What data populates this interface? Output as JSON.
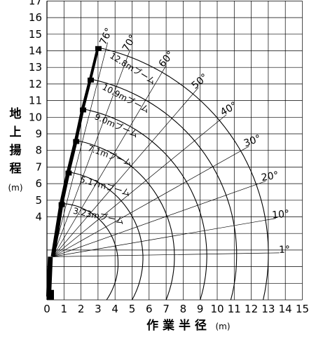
{
  "chart_data": {
    "type": "line",
    "xlabel": "作 業 半 径",
    "xunit": "(m)",
    "ylabel_chars": [
      "地",
      "上",
      "揚",
      "程"
    ],
    "yunit": "(m)",
    "xlim": [
      0,
      15
    ],
    "ylim": [
      -1,
      17
    ],
    "xticks": [
      "0",
      "1",
      "2",
      "3",
      "4",
      "5",
      "6",
      "7",
      "8",
      "9",
      "10",
      "11",
      "12",
      "13",
      "14",
      "15"
    ],
    "yticks": [
      "4",
      "5",
      "6",
      "7",
      "8",
      "9",
      "10",
      "11",
      "12",
      "13",
      "14",
      "15",
      "16",
      "17"
    ],
    "grid": true,
    "pivot": [
      0.35,
      1.6
    ],
    "booms": [
      {
        "label": "3.23mブーム",
        "length": 3.23,
        "tip": [
          0.85,
          4.8
        ]
      },
      {
        "label": "5.17mブーム",
        "length": 5.17,
        "tip": [
          1.25,
          6.7
        ]
      },
      {
        "label": "7.1mブーム",
        "length": 7.1,
        "tip": [
          1.7,
          8.6
        ]
      },
      {
        "label": "9.0mブーム",
        "length": 9.0,
        "tip": [
          2.1,
          10.5
        ]
      },
      {
        "label": "10.9mブーム",
        "length": 10.9,
        "tip": [
          2.55,
          12.3
        ]
      },
      {
        "label": "12.8mブーム",
        "length": 12.8,
        "tip": [
          3.0,
          14.2
        ]
      }
    ],
    "envelope_x_at_ground": [
      3.5,
      5.0,
      7.0,
      9.0,
      10.8,
      12.7
    ],
    "angles": [
      "76°",
      "70°",
      "60°",
      "50°",
      "40°",
      "30°",
      "20°",
      "10°",
      "1°"
    ],
    "angle_values": [
      76,
      70,
      60,
      50,
      40,
      30,
      20,
      10,
      1
    ]
  }
}
